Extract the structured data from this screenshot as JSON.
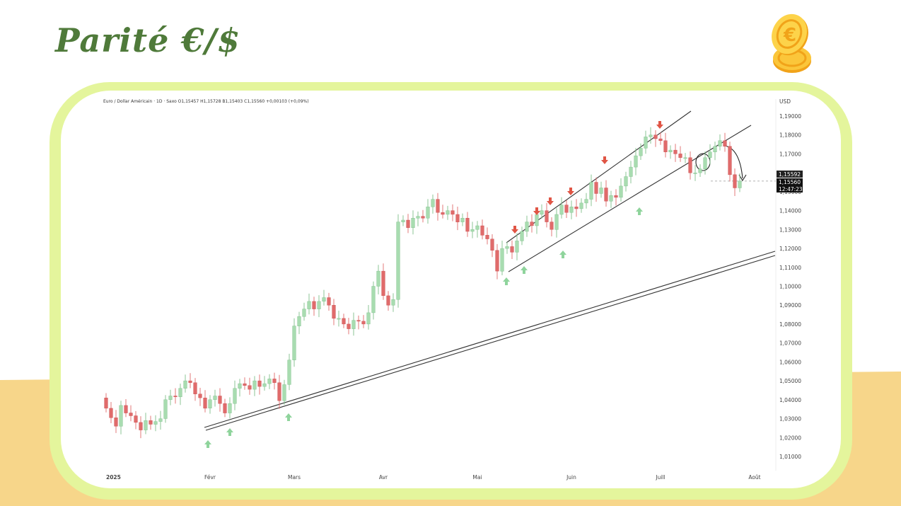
{
  "slide": {
    "title": "Parité €/$",
    "icon": "euro-coins-icon",
    "colors": {
      "title": "#4f7a3a",
      "frame": "#e4f59c",
      "sand": "#f7d68a",
      "bull": "#a8dcb0",
      "bear": "#e06b6b",
      "arrow_up": "#8fd49c",
      "arrow_down": "#e05545"
    }
  },
  "chart_data": {
    "type": "candlestick",
    "header": "Euro / Dollar Américain · 1D · Saxo  O1,15457  H1,15728  B1,15403  C1,15560  +0,00103 (+0,09%)",
    "currency_label": "USD",
    "y_ticks": [
      "1,19000",
      "1,18000",
      "1,17000",
      "1,16000",
      "1,15000",
      "1,14000",
      "1,13000",
      "1,12000",
      "1,11000",
      "1,10000",
      "1,09000",
      "1,08000",
      "1,07000",
      "1,06000",
      "1,05000",
      "1,04000",
      "1,03000",
      "1,02000",
      "1,01000"
    ],
    "x_ticks": [
      "2025",
      "Févr",
      "Mars",
      "Avr",
      "Mai",
      "Juin",
      "Juill",
      "Août"
    ],
    "ylim": [
      1.0,
      1.195
    ],
    "price_labels": [
      "1,15592",
      "1,15560",
      "12:47:23"
    ],
    "closes": [
      1.0355,
      1.0305,
      1.026,
      1.037,
      1.033,
      1.0315,
      1.028,
      1.024,
      1.029,
      1.027,
      1.0285,
      1.03,
      1.04,
      1.042,
      1.0415,
      1.046,
      1.05,
      1.049,
      1.043,
      1.041,
      1.0355,
      1.04,
      1.042,
      1.038,
      1.033,
      1.038,
      1.046,
      1.0485,
      1.0475,
      1.0455,
      1.05,
      1.047,
      1.0485,
      1.051,
      1.049,
      1.0395,
      1.048,
      1.061,
      1.079,
      1.084,
      1.088,
      1.092,
      1.088,
      1.092,
      1.094,
      1.09,
      1.083,
      1.083,
      1.08,
      1.0775,
      1.082,
      1.0815,
      1.08,
      1.086,
      1.1,
      1.108,
      1.095,
      1.09,
      1.093,
      1.134,
      1.135,
      1.131,
      1.136,
      1.137,
      1.136,
      1.142,
      1.146,
      1.139,
      1.138,
      1.14,
      1.138,
      1.134,
      1.136,
      1.129,
      1.13,
      1.132,
      1.127,
      1.125,
      1.119,
      1.108,
      1.12,
      1.121,
      1.118,
      1.124,
      1.129,
      1.134,
      1.132,
      1.138,
      1.14,
      1.134,
      1.13,
      1.138,
      1.143,
      1.139,
      1.142,
      1.141,
      1.144,
      1.146,
      1.155,
      1.149,
      1.152,
      1.145,
      1.148,
      1.147,
      1.153,
      1.158,
      1.163,
      1.169,
      1.173,
      1.179,
      1.18,
      1.178,
      1.177,
      1.171,
      1.172,
      1.17,
      1.168,
      1.168,
      1.16,
      1.16,
      1.162,
      1.168,
      1.171,
      1.174,
      1.177,
      1.174,
      1.159,
      1.152,
      1.1556
    ],
    "annotations": {
      "up_arrows": [
        "Févr",
        "Févr",
        "Mars",
        "Mai",
        "Mai",
        "Mai",
        "Juin"
      ],
      "down_arrows": [
        "Mai",
        "Mai",
        "Mai",
        "Mai",
        "Juin",
        "Juill"
      ]
    },
    "trendlines": "long-term support from Février, ascending channel Mai–Juillet, break below channel in Juillet"
  }
}
